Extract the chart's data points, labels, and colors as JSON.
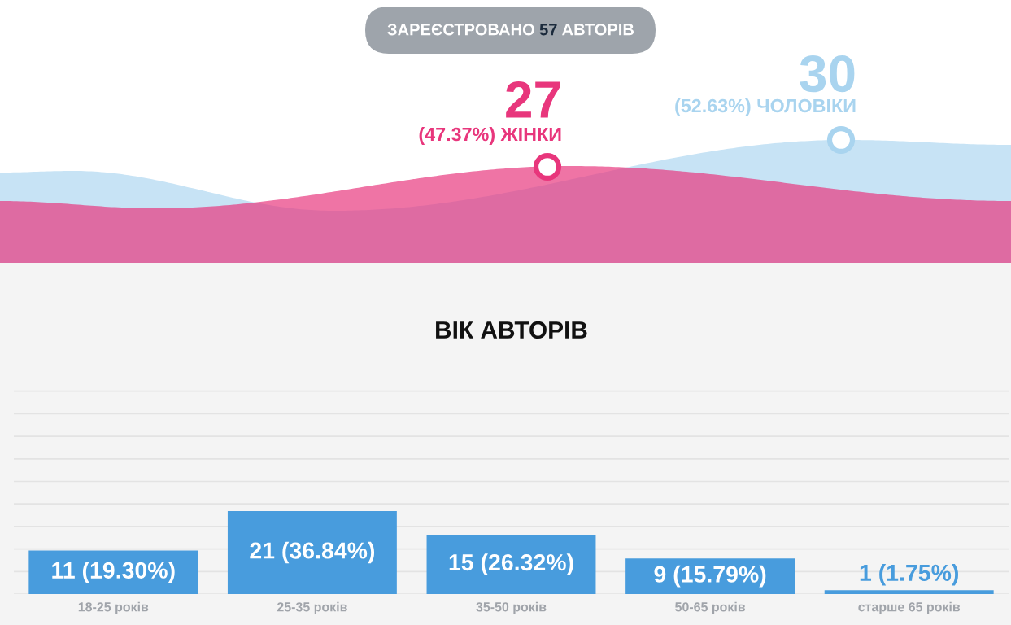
{
  "chart_data": [
    {
      "type": "other",
      "title": "ЗАРЕЄСТРОВАНО 57 АВТОРІВ",
      "categories": [
        "(47.37%) ЖІНКИ",
        "(52.63%) ЧОЛОВІКИ"
      ],
      "values": [
        27,
        30
      ],
      "colors": [
        "#e8367c",
        "#a9d4ef"
      ],
      "data_labels": true
    },
    {
      "type": "bar",
      "title": "ВІК АВТОРІВ",
      "categories": [
        "18-25 років",
        "25-35 років",
        "35-50 років",
        "50-65 років",
        "старше 65 років"
      ],
      "values": [
        11,
        21,
        15,
        9,
        1
      ],
      "value_labels": [
        "11 (19.30%)",
        "21 (36.84%)",
        "15 (26.32%)",
        "9 (15.79%)",
        "1 (1.75%)"
      ],
      "color": "#489cdd",
      "ylim": [
        0,
        57
      ],
      "yticks": [
        {
          "value": 0,
          "label": null
        },
        {
          "value": 5.7,
          "label": null
        },
        {
          "value": 11.4,
          "label": null
        },
        {
          "value": 17.1,
          "label": null
        },
        {
          "value": 22.8,
          "label": null
        },
        {
          "value": 28.5,
          "label": null
        },
        {
          "value": 34.2,
          "label": null
        },
        {
          "value": 39.9,
          "label": null
        },
        {
          "value": 45.6,
          "label": null
        },
        {
          "value": 51.3,
          "label": null
        },
        {
          "value": 57,
          "label": null
        }
      ],
      "grid": "y",
      "tick_labels": "x"
    }
  ]
}
